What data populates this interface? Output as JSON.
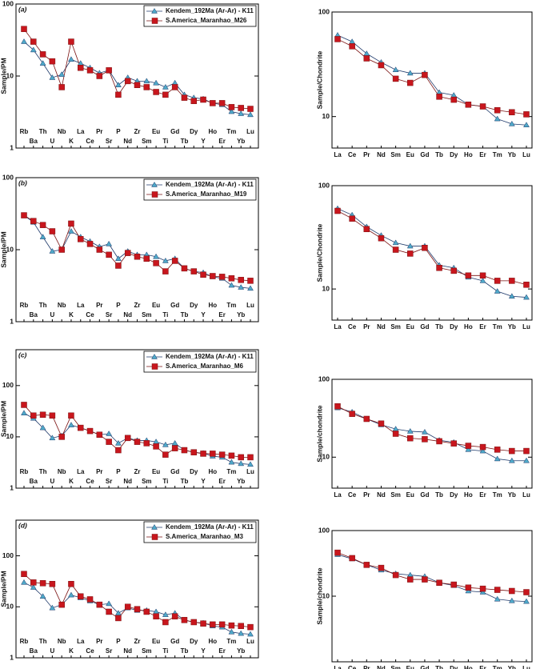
{
  "chart_data": [
    {
      "type": "line",
      "label": "(a)",
      "ylabel": "Sample/PM",
      "log": true,
      "ylim": [
        1,
        100
      ],
      "yticks": [
        1,
        10,
        100
      ],
      "categories": [
        "Rb",
        "Ba",
        "Th",
        "U",
        "Nb",
        "K",
        "La",
        "Ce",
        "Pr",
        "Sr",
        "P",
        "Nd",
        "Zr",
        "Sm",
        "Eu",
        "Ti",
        "Gd",
        "Tb",
        "Dy",
        "Y",
        "Ho",
        "Er",
        "Tm",
        "Yb",
        "Lu"
      ],
      "series": [
        {
          "name": "Kendem_192Ma (Ar-Ar) - K11",
          "color": "#1f3a6b",
          "marker_color": "#4fa9c9",
          "marker": "triangle",
          "values": [
            30,
            23,
            15,
            9.5,
            10.5,
            17,
            15,
            13,
            11,
            12,
            7.5,
            9.5,
            8.5,
            8.5,
            8,
            7,
            8,
            5.5,
            5,
            4.8,
            4.2,
            4,
            3.2,
            3,
            2.9
          ]
        },
        {
          "name": "S.America_Maranhao_M26",
          "color": "#7a1010",
          "marker_color": "#c8161d",
          "marker": "square",
          "values": [
            45,
            30,
            20,
            16,
            7,
            30,
            13,
            12,
            10,
            12,
            5.5,
            8.5,
            7.5,
            7,
            6,
            5.5,
            7,
            5,
            4.5,
            4.7,
            4.2,
            4.2,
            3.7,
            3.6,
            3.5
          ]
        }
      ]
    },
    {
      "type": "line",
      "ylabel": "Sample/Chondrite",
      "log": true,
      "ylim": [
        5,
        100
      ],
      "yticks": [
        10,
        100
      ],
      "categories": [
        "La",
        "Ce",
        "Pr",
        "Nd",
        "Sm",
        "Eu",
        "Gd",
        "Tb",
        "Dy",
        "Ho",
        "Er",
        "Tm",
        "Yb",
        "Lu"
      ],
      "series": [
        {
          "color": "#1f3a6b",
          "marker_color": "#4fa9c9",
          "marker": "triangle",
          "values": [
            60,
            52,
            40,
            33,
            28,
            26,
            26,
            17,
            16,
            13,
            12.5,
            9.5,
            8.5,
            8.3
          ]
        },
        {
          "color": "#7a1010",
          "marker_color": "#c8161d",
          "marker": "square",
          "values": [
            55,
            47,
            36,
            31,
            23,
            21,
            25,
            15.5,
            14.5,
            13,
            12.5,
            11.5,
            11,
            10.5
          ]
        }
      ]
    },
    {
      "type": "line",
      "label": "(b)",
      "ylabel": "Sample/PM",
      "log": true,
      "ylim": [
        1,
        100
      ],
      "yticks": [
        1,
        10,
        100
      ],
      "categories": [
        "Rb",
        "Ba",
        "Th",
        "U",
        "Nb",
        "K",
        "La",
        "Ce",
        "Pr",
        "Sr",
        "P",
        "Nd",
        "Zr",
        "Sm",
        "Eu",
        "Ti",
        "Gd",
        "Tb",
        "Dy",
        "Y",
        "Ho",
        "Er",
        "Tm",
        "Yb",
        "Lu"
      ],
      "series": [
        {
          "name": "Kendem_192Ma (Ar-Ar) - K11",
          "color": "#1f3a6b",
          "marker_color": "#4fa9c9",
          "marker": "triangle",
          "values": [
            30,
            24,
            15,
            9.5,
            10,
            18,
            15,
            13,
            11,
            12,
            7.5,
            9.5,
            8.5,
            8.5,
            8,
            7,
            7.5,
            5.5,
            5,
            4.8,
            4.2,
            4,
            3.2,
            3,
            2.9
          ]
        },
        {
          "name": "S.America_Maranhao_M19",
          "color": "#7a1010",
          "marker_color": "#c8161d",
          "marker": "square",
          "values": [
            30,
            25,
            22,
            18,
            10,
            23,
            14,
            12,
            10,
            8.5,
            6,
            9,
            8,
            7.5,
            6.5,
            5,
            7,
            5.5,
            5,
            4.5,
            4.3,
            4.2,
            4,
            3.8,
            3.7
          ]
        }
      ]
    },
    {
      "type": "line",
      "ylabel": "Sample/Chondrite",
      "log": true,
      "ylim": [
        5,
        100
      ],
      "yticks": [
        10,
        100
      ],
      "categories": [
        "La",
        "Ce",
        "Pr",
        "Nd",
        "Sm",
        "Eu",
        "Gd",
        "Tb",
        "Dy",
        "Ho",
        "Er",
        "Tm",
        "Yb",
        "Lu"
      ],
      "series": [
        {
          "color": "#1f3a6b",
          "marker_color": "#4fa9c9",
          "marker": "triangle",
          "values": [
            60,
            52,
            40,
            33,
            28,
            26,
            26,
            17,
            16,
            13,
            12,
            9.5,
            8.5,
            8.3
          ]
        },
        {
          "color": "#7a1010",
          "marker_color": "#c8161d",
          "marker": "square",
          "values": [
            57,
            48,
            38,
            31,
            24,
            22,
            25,
            16,
            15,
            13.5,
            13.5,
            12,
            12,
            11
          ]
        }
      ]
    },
    {
      "type": "line",
      "label": "(c)",
      "ylabel": "Sample/PM",
      "log": true,
      "ylim": [
        1,
        500
      ],
      "yticks": [
        1,
        10,
        100
      ],
      "categories": [
        "Rb",
        "Ba",
        "Th",
        "U",
        "Nb",
        "K",
        "La",
        "Ce",
        "Pr",
        "Sr",
        "P",
        "Nd",
        "Zr",
        "Sm",
        "Eu",
        "Ti",
        "Gd",
        "Tb",
        "Dy",
        "Y",
        "Ho",
        "Er",
        "Tm",
        "Yb",
        "Lu"
      ],
      "series": [
        {
          "name": "Kendem_192Ma (Ar-Ar) - K11",
          "color": "#1f3a6b",
          "marker_color": "#4fa9c9",
          "marker": "triangle",
          "values": [
            29,
            23,
            15,
            9.5,
            10.5,
            17,
            15,
            13,
            11,
            11.5,
            7.5,
            9.5,
            8.5,
            8.5,
            8,
            7,
            7.5,
            5.5,
            5,
            4.8,
            4.2,
            4,
            3.2,
            3,
            2.9
          ]
        },
        {
          "name": "S.America_Maranhao_M6",
          "color": "#7a1010",
          "marker_color": "#c8161d",
          "marker": "square",
          "values": [
            42,
            26,
            27,
            26,
            10,
            26,
            15,
            13,
            11,
            8,
            5.5,
            9.5,
            8,
            7.5,
            6.5,
            4.5,
            6,
            5.5,
            5,
            4.7,
            4.7,
            4.5,
            4.3,
            4,
            4
          ]
        }
      ]
    },
    {
      "type": "line",
      "ylabel": "Sample/chondrite",
      "log": true,
      "ylim": [
        4,
        100
      ],
      "yticks": [
        10,
        100
      ],
      "categories": [
        "La",
        "Ce",
        "Pr",
        "Nd",
        "Sm",
        "Eu",
        "Gd",
        "Tb",
        "Dy",
        "Ho",
        "Er",
        "Tm",
        "Yb",
        "Lu"
      ],
      "series": [
        {
          "color": "#1f3a6b",
          "marker_color": "#4fa9c9",
          "marker": "triangle",
          "values": [
            43,
            38,
            31,
            26,
            23,
            21.5,
            21,
            16.5,
            15.5,
            12.5,
            12,
            9.5,
            9,
            9
          ]
        },
        {
          "color": "#7a1010",
          "marker_color": "#c8161d",
          "marker": "square",
          "values": [
            45,
            36,
            31,
            27,
            20,
            17.5,
            17,
            16,
            15,
            14,
            13.5,
            12.5,
            12,
            12
          ]
        }
      ]
    },
    {
      "type": "line",
      "label": "(d)",
      "ylabel": "Sample/PM",
      "log": true,
      "ylim": [
        1,
        500
      ],
      "yticks": [
        1,
        10,
        100
      ],
      "categories": [
        "Rb",
        "Ba",
        "Th",
        "U",
        "Nb",
        "K",
        "La",
        "Ce",
        "Pr",
        "Sr",
        "P",
        "Nd",
        "Zr",
        "Sm",
        "Eu",
        "Ti",
        "Gd",
        "Tb",
        "Dy",
        "Y",
        "Ho",
        "Er",
        "Tm",
        "Yb",
        "Lu"
      ],
      "series": [
        {
          "name": "Kendem_192Ma (Ar-Ar) - K11",
          "color": "#1f3a6b",
          "marker_color": "#4fa9c9",
          "marker": "triangle",
          "values": [
            30,
            24,
            16,
            9.5,
            11,
            17,
            15,
            13,
            11,
            11.5,
            7.5,
            9.5,
            8.5,
            8.5,
            8,
            7,
            7.5,
            5.5,
            5,
            4.8,
            4.2,
            4,
            3.2,
            3,
            2.9
          ]
        },
        {
          "name": "S.America_Maranhao_M3",
          "color": "#7a1010",
          "marker_color": "#c8161d",
          "marker": "square",
          "values": [
            44,
            30,
            29,
            28,
            11,
            28,
            16,
            14,
            11,
            8,
            6,
            10,
            9,
            8,
            6.5,
            5,
            6.5,
            5.5,
            5,
            4.7,
            4.5,
            4.5,
            4.3,
            4.2,
            4
          ]
        }
      ]
    },
    {
      "type": "line",
      "ylabel": "Sample/chondrite",
      "log": true,
      "ylim": [
        1,
        100
      ],
      "yticks": [
        10,
        100
      ],
      "categories": [
        "La",
        "Ce",
        "Pr",
        "Nd",
        "Sm",
        "Eu",
        "Gd",
        "Tb",
        "Dy",
        "Ho",
        "Er",
        "Tm",
        "Yb",
        "Lu"
      ],
      "series": [
        {
          "color": "#1f3a6b",
          "marker_color": "#4fa9c9",
          "marker": "triangle",
          "values": [
            43,
            37,
            30,
            25,
            22,
            21,
            20,
            16,
            14.5,
            12,
            11.5,
            9,
            8.5,
            8.3
          ]
        },
        {
          "color": "#7a1010",
          "marker_color": "#c8161d",
          "marker": "square",
          "values": [
            46,
            38,
            30,
            27,
            21,
            18,
            18,
            16,
            15,
            13.5,
            13,
            12.5,
            12,
            11.5
          ]
        }
      ]
    }
  ]
}
